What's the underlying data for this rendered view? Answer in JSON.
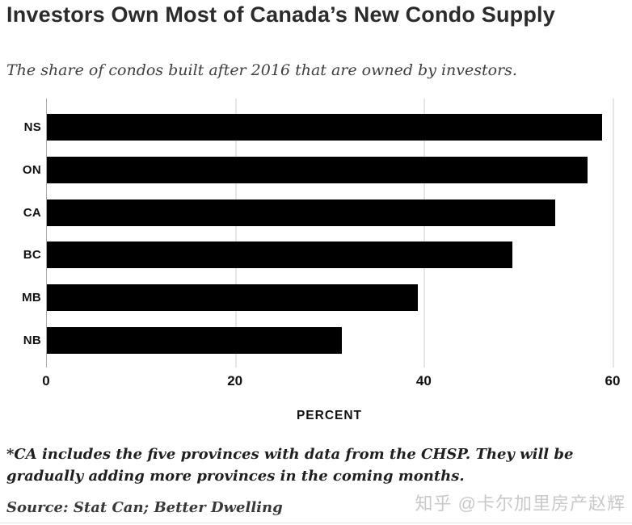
{
  "header": {
    "title": "Investors Own Most of Canada’s New Condo Supply",
    "subtitle": "The share of condos built after 2016 that are owned by investors."
  },
  "chart_data": {
    "type": "bar",
    "orientation": "horizontal",
    "title": "Investors Own Most of Canada’s New Condo Supply",
    "subtitle": "The share of condos built after 2016 that are owned by investors.",
    "categories": [
      "NS",
      "ON",
      "CA",
      "BC",
      "MB",
      "NB"
    ],
    "values": [
      58.8,
      57.3,
      53.8,
      49.3,
      39.3,
      31.2
    ],
    "xlabel": "PERCENT",
    "ylabel": "",
    "xlim": [
      0,
      60
    ],
    "xticks": [
      0,
      20,
      40,
      60
    ],
    "grid": true,
    "legend": false,
    "bar_color": "#000000"
  },
  "footnote": "*CA includes the five provinces with data from the CHSP. They will be gradually adding more provinces in the coming months.",
  "source": "Source: Stat Can; Better Dwelling",
  "watermark": "知乎 @卡尔加里房产赵辉",
  "colors": {
    "bar": "#000000",
    "gridline": "#e6e6e6",
    "axis_line": "#a9a9a9",
    "title_text": "#2b2b2b",
    "subtitle_text": "#3f3f3f",
    "watermark_text": "#c9c9c9"
  }
}
